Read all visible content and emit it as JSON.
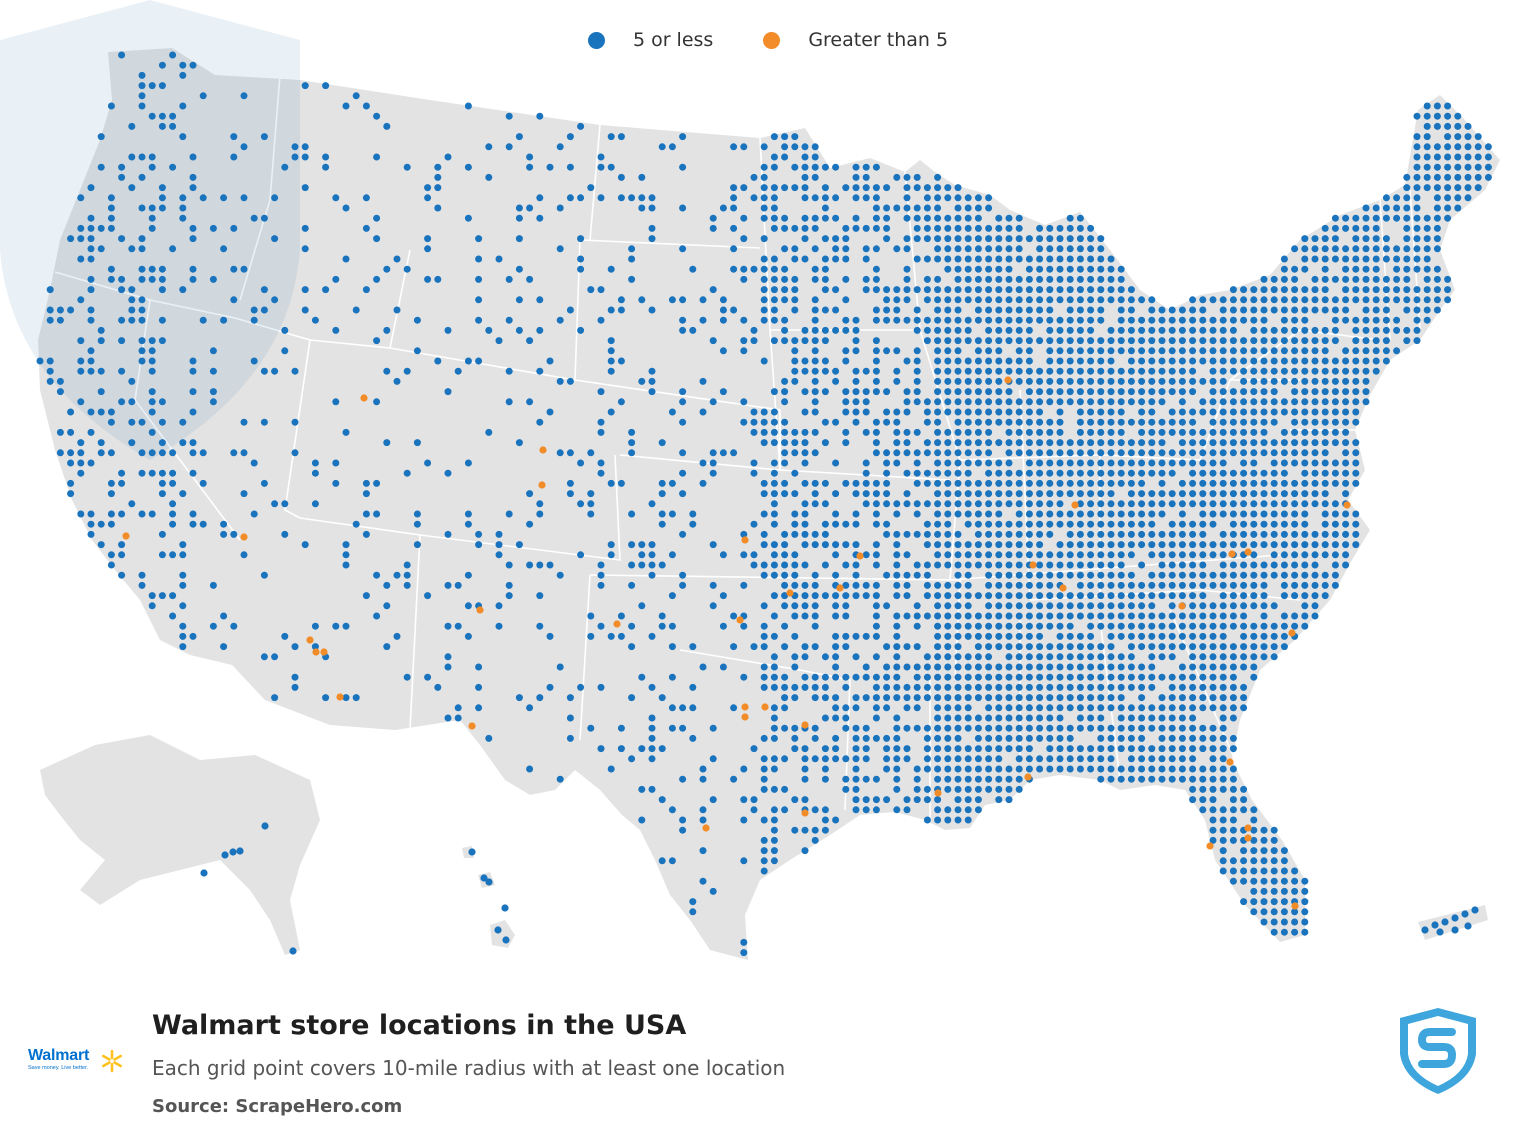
{
  "legend": {
    "items": [
      {
        "label": "5 or less",
        "color": "#1a73bd"
      },
      {
        "label": "Greater than 5",
        "color": "#f28c28"
      }
    ]
  },
  "map": {
    "land_color": "#e3e3e3",
    "border_color": "#ffffff",
    "watermark_color": "#5d8fb6"
  },
  "footer": {
    "title": "Walmart store locations in the USA",
    "subtitle": "Each grid point covers 10-mile radius with at least one location",
    "source": "Source: ScrapeHero.com"
  },
  "walmart_logo": {
    "word": "Walmart",
    "tagline": "Save money. Live better.",
    "color": "#0071ce",
    "spark_color": "#ffc220"
  },
  "scrapehero_logo": {
    "icon": "scrapehero-shield-icon",
    "color": "#3ea6dd"
  }
}
